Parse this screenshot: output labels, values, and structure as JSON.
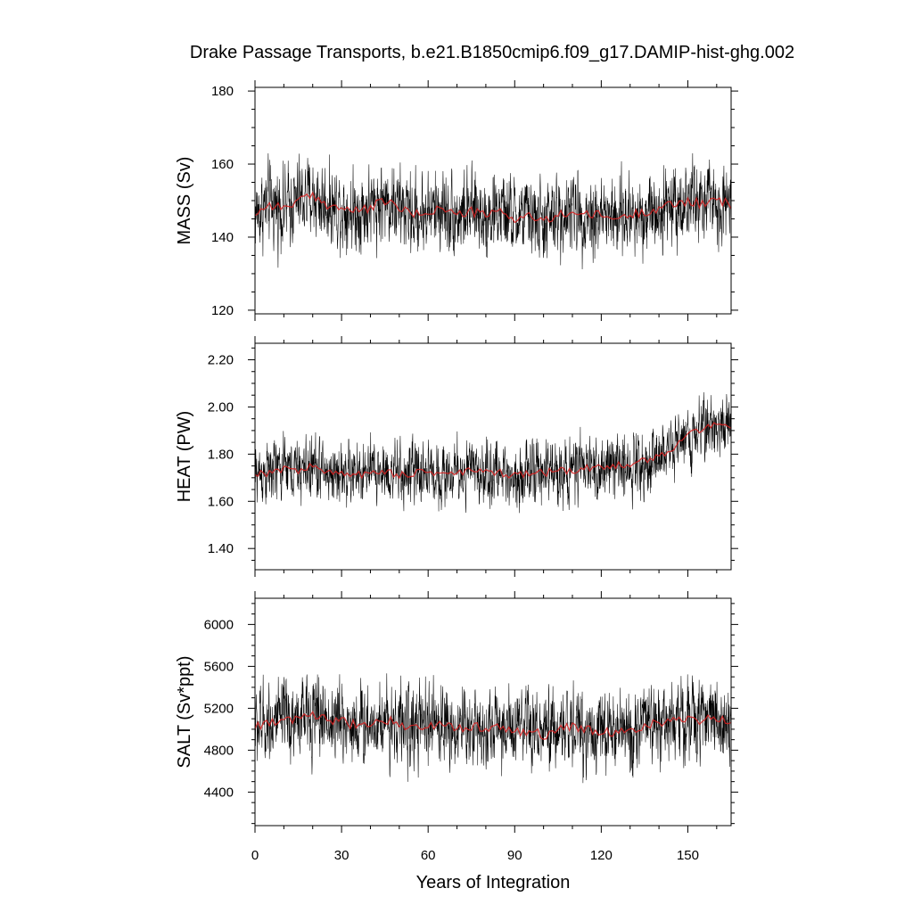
{
  "chart_data": {
    "type": "line",
    "title": "Drake Passage Transports, b.e21.B1850cmip6.f09_g17.DAMIP-hist-ghg.002",
    "xlabel": "Years of Integration",
    "xlim": [
      0,
      165
    ],
    "xticks": [
      "0",
      "30",
      "60",
      "90",
      "120",
      "150"
    ],
    "series_colors": {
      "monthly": "#000000",
      "annual_mean": "#d62020"
    },
    "panels": [
      {
        "name": "mass",
        "ylabel": "MASS (Sv)",
        "ylim": [
          119,
          181
        ],
        "yticks": [
          "120",
          "140",
          "160",
          "180"
        ],
        "monthly_mean_level": 147,
        "monthly_noise_amplitude": 7.5,
        "annual_mean": [
          [
            0,
            146.5
          ],
          [
            5,
            149
          ],
          [
            10,
            148
          ],
          [
            15,
            150
          ],
          [
            20,
            151
          ],
          [
            25,
            149
          ],
          [
            30,
            148
          ],
          [
            35,
            147
          ],
          [
            40,
            148
          ],
          [
            45,
            150
          ],
          [
            50,
            148
          ],
          [
            55,
            146
          ],
          [
            60,
            147
          ],
          [
            65,
            148
          ],
          [
            70,
            146
          ],
          [
            75,
            147
          ],
          [
            80,
            146
          ],
          [
            85,
            147
          ],
          [
            90,
            145
          ],
          [
            95,
            146
          ],
          [
            100,
            144
          ],
          [
            105,
            146
          ],
          [
            110,
            147
          ],
          [
            115,
            146
          ],
          [
            120,
            146
          ],
          [
            125,
            145
          ],
          [
            130,
            146
          ],
          [
            135,
            147
          ],
          [
            140,
            148
          ],
          [
            145,
            149
          ],
          [
            150,
            150
          ],
          [
            155,
            149
          ],
          [
            160,
            150
          ],
          [
            165,
            149
          ]
        ]
      },
      {
        "name": "heat",
        "ylabel": "HEAT (PW)",
        "ylim": [
          1.31,
          2.27
        ],
        "yticks": [
          "1.40",
          "1.60",
          "1.80",
          "2.00",
          "2.20"
        ],
        "monthly_mean_level": 1.72,
        "monthly_noise_amplitude": 0.09,
        "annual_mean": [
          [
            0,
            1.72
          ],
          [
            5,
            1.72
          ],
          [
            10,
            1.74
          ],
          [
            15,
            1.73
          ],
          [
            20,
            1.75
          ],
          [
            25,
            1.72
          ],
          [
            30,
            1.72
          ],
          [
            35,
            1.71
          ],
          [
            40,
            1.72
          ],
          [
            45,
            1.73
          ],
          [
            50,
            1.71
          ],
          [
            55,
            1.72
          ],
          [
            60,
            1.73
          ],
          [
            65,
            1.71
          ],
          [
            70,
            1.72
          ],
          [
            75,
            1.73
          ],
          [
            80,
            1.72
          ],
          [
            85,
            1.72
          ],
          [
            90,
            1.71
          ],
          [
            95,
            1.72
          ],
          [
            100,
            1.72
          ],
          [
            105,
            1.73
          ],
          [
            110,
            1.73
          ],
          [
            115,
            1.74
          ],
          [
            120,
            1.74
          ],
          [
            125,
            1.75
          ],
          [
            130,
            1.76
          ],
          [
            135,
            1.77
          ],
          [
            140,
            1.79
          ],
          [
            145,
            1.83
          ],
          [
            150,
            1.88
          ],
          [
            155,
            1.91
          ],
          [
            160,
            1.93
          ],
          [
            165,
            1.92
          ]
        ]
      },
      {
        "name": "salt",
        "ylabel": "SALT (Sv*ppt)",
        "ylim": [
          4080,
          6250
        ],
        "yticks": [
          "4400",
          "4800",
          "5200",
          "5600",
          "6000"
        ],
        "monthly_mean_level": 5040,
        "monthly_noise_amplitude": 260,
        "annual_mean": [
          [
            0,
            5020
          ],
          [
            5,
            5080
          ],
          [
            10,
            5060
          ],
          [
            15,
            5110
          ],
          [
            20,
            5140
          ],
          [
            25,
            5090
          ],
          [
            30,
            5070
          ],
          [
            35,
            5040
          ],
          [
            40,
            5060
          ],
          [
            45,
            5100
          ],
          [
            50,
            5060
          ],
          [
            55,
            5010
          ],
          [
            60,
            5030
          ],
          [
            65,
            5060
          ],
          [
            70,
            5010
          ],
          [
            75,
            5030
          ],
          [
            80,
            5000
          ],
          [
            85,
            5030
          ],
          [
            90,
            4960
          ],
          [
            95,
            4990
          ],
          [
            100,
            4940
          ],
          [
            105,
            4990
          ],
          [
            110,
            5020
          ],
          [
            115,
            4990
          ],
          [
            120,
            4990
          ],
          [
            125,
            4960
          ],
          [
            130,
            4990
          ],
          [
            135,
            5030
          ],
          [
            140,
            5060
          ],
          [
            145,
            5080
          ],
          [
            150,
            5110
          ],
          [
            155,
            5080
          ],
          [
            160,
            5110
          ],
          [
            165,
            5080
          ]
        ]
      }
    ]
  }
}
